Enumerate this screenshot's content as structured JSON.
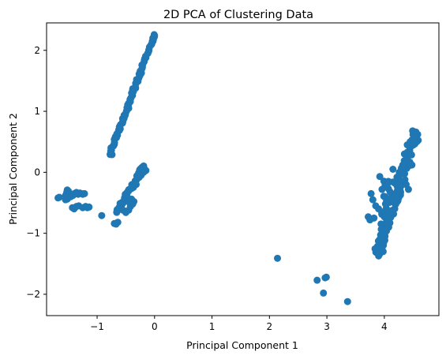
{
  "chart_data": {
    "type": "scatter",
    "title": "2D PCA of Clustering Data",
    "xlabel": "Principal Component 1",
    "ylabel": "Principal Component 2",
    "xlim": [
      -1.88,
      4.95
    ],
    "ylim": [
      -2.35,
      2.45
    ],
    "x_ticks": [
      -1,
      0,
      1,
      2,
      3,
      4
    ],
    "x_tick_labels": [
      "−1",
      "0",
      "1",
      "2",
      "3",
      "4"
    ],
    "y_ticks": [
      -2,
      -1,
      0,
      1,
      2
    ],
    "y_tick_labels": [
      "−2",
      "−1",
      "0",
      "1",
      "2"
    ],
    "grid": false,
    "marker_color": "#1f77b4",
    "segments": [
      {
        "from": [
          -0.78,
          0.3
        ],
        "to": [
          0.0,
          2.25
        ],
        "count": 70,
        "spread": 0.02
      },
      {
        "from": [
          -0.65,
          -0.65
        ],
        "to": [
          -0.2,
          0.08
        ],
        "count": 45,
        "spread": 0.03
      },
      {
        "from": [
          3.88,
          -1.35
        ],
        "to": [
          4.55,
          0.65
        ],
        "count": 110,
        "spread": 0.07
      },
      {
        "from": [
          4.0,
          -0.9
        ],
        "to": [
          4.0,
          -0.05
        ],
        "count": 20,
        "spread": 0.08
      }
    ],
    "points": [
      [
        -1.68,
        -0.42
      ],
      [
        -1.66,
        -0.41
      ],
      [
        -1.55,
        -0.38
      ],
      [
        -1.53,
        -0.33
      ],
      [
        -1.52,
        -0.29
      ],
      [
        -1.5,
        -0.31
      ],
      [
        -1.48,
        -0.36
      ],
      [
        -1.55,
        -0.45
      ],
      [
        -1.52,
        -0.44
      ],
      [
        -1.46,
        -0.4
      ],
      [
        -1.42,
        -0.38
      ],
      [
        -1.4,
        -0.35
      ],
      [
        -1.36,
        -0.33
      ],
      [
        -1.33,
        -0.36
      ],
      [
        -1.3,
        -0.34
      ],
      [
        -1.27,
        -0.35
      ],
      [
        -1.25,
        -0.36
      ],
      [
        -1.22,
        -0.35
      ],
      [
        -1.43,
        -0.58
      ],
      [
        -1.4,
        -0.6
      ],
      [
        -1.36,
        -0.56
      ],
      [
        -1.32,
        -0.55
      ],
      [
        -1.25,
        -0.58
      ],
      [
        -1.2,
        -0.56
      ],
      [
        -1.17,
        -0.58
      ],
      [
        -1.14,
        -0.57
      ],
      [
        -0.92,
        -0.71
      ],
      [
        -0.7,
        -0.84
      ],
      [
        -0.67,
        -0.85
      ],
      [
        -0.64,
        -0.82
      ],
      [
        -0.62,
        -0.58
      ],
      [
        -0.55,
        -0.62
      ],
      [
        -0.5,
        -0.66
      ],
      [
        -0.45,
        -0.62
      ],
      [
        -0.42,
        -0.56
      ],
      [
        -0.38,
        -0.52
      ],
      [
        -0.36,
        -0.48
      ],
      [
        -0.4,
        -0.44
      ],
      [
        -0.46,
        -0.48
      ],
      [
        -0.32,
        -0.2
      ],
      [
        -0.28,
        -0.05
      ],
      [
        -0.25,
        0.05
      ],
      [
        -0.22,
        0.08
      ],
      [
        -0.18,
        0.06
      ],
      [
        -0.15,
        0.03
      ],
      [
        -0.19,
        0.0
      ],
      [
        -0.77,
        0.3
      ],
      [
        -0.74,
        0.29
      ],
      [
        -0.7,
        0.48
      ],
      [
        -0.66,
        0.62
      ],
      [
        -0.6,
        0.72
      ],
      [
        -0.55,
        0.84
      ],
      [
        -0.45,
        1.05
      ],
      [
        -0.42,
        1.2
      ],
      [
        -0.4,
        1.3
      ],
      [
        -0.38,
        1.37
      ],
      [
        -0.33,
        1.38
      ],
      [
        -0.25,
        1.6
      ],
      [
        -0.12,
        1.95
      ],
      [
        -0.05,
        2.1
      ],
      [
        -0.03,
        2.2
      ],
      [
        0.0,
        2.24
      ],
      [
        4.05,
        -0.2
      ],
      [
        4.02,
        -0.52
      ],
      [
        3.96,
        -0.28
      ],
      [
        3.9,
        -0.6
      ],
      [
        3.85,
        -0.55
      ],
      [
        3.82,
        -0.75
      ],
      [
        3.8,
        -0.45
      ],
      [
        3.77,
        -0.35
      ],
      [
        3.75,
        -0.78
      ],
      [
        3.72,
        -0.73
      ],
      [
        3.86,
        -1.28
      ],
      [
        3.9,
        -1.35
      ],
      [
        3.92,
        -1.34
      ],
      [
        3.98,
        -1.3
      ],
      [
        3.95,
        -1.05
      ],
      [
        4.02,
        -0.95
      ],
      [
        4.05,
        -0.84
      ],
      [
        4.1,
        -0.32
      ],
      [
        4.15,
        -0.16
      ],
      [
        4.2,
        -0.35
      ],
      [
        4.25,
        -0.32
      ],
      [
        4.22,
        -0.08
      ],
      [
        4.15,
        0.05
      ],
      [
        4.12,
        -0.43
      ],
      [
        4.35,
        0.3
      ],
      [
        4.4,
        0.45
      ],
      [
        4.45,
        0.5
      ],
      [
        4.5,
        0.62
      ],
      [
        4.55,
        0.66
      ],
      [
        4.58,
        0.62
      ],
      [
        4.42,
        -0.28
      ],
      [
        4.38,
        -0.2
      ],
      [
        4.48,
        0.12
      ],
      [
        2.14,
        -1.41
      ],
      [
        2.83,
        -1.77
      ],
      [
        2.97,
        -1.73
      ],
      [
        2.99,
        -1.72
      ],
      [
        2.94,
        -1.98
      ],
      [
        3.36,
        -2.12
      ]
    ]
  }
}
